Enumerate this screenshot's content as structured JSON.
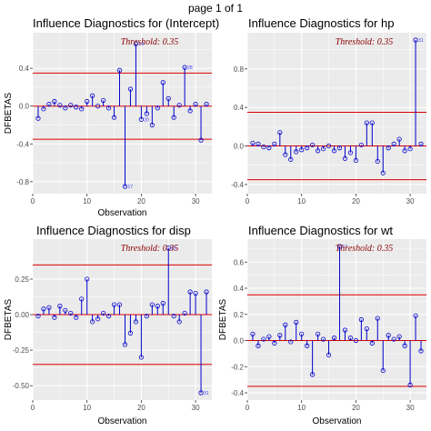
{
  "page_title": "page 1 of 1",
  "chart_data": [
    {
      "type": "lollipop",
      "title": "Influence Diagnostics for (Intercept)",
      "xlabel": "Observation",
      "ylabel": "DFBETAS",
      "threshold_label": "Threshold: 0.35",
      "threshold": 0.35,
      "xlim": [
        0,
        33
      ],
      "ylim": [
        -0.85,
        0.7
      ],
      "xticks": [
        0,
        10,
        20,
        30
      ],
      "xtick_labels": [
        "0",
        "10",
        "20",
        "30"
      ],
      "yticks": [
        -0.8,
        -0.4,
        0.0,
        0.4
      ],
      "ytick_labels": [
        "-0.8",
        "-0.4",
        "0.0",
        "0.4"
      ],
      "x": [
        1,
        2,
        3,
        4,
        5,
        6,
        7,
        8,
        9,
        10,
        11,
        12,
        13,
        14,
        15,
        16,
        17,
        18,
        19,
        20,
        21,
        22,
        23,
        24,
        25,
        26,
        27,
        28,
        29,
        30,
        31,
        32
      ],
      "values": [
        -0.13,
        -0.03,
        0.02,
        0.05,
        0.01,
        -0.02,
        0.01,
        -0.01,
        -0.03,
        0.05,
        0.11,
        0.0,
        0.06,
        -0.02,
        -0.12,
        0.38,
        -0.85,
        0.18,
        0.66,
        -0.14,
        -0.08,
        -0.2,
        -0.02,
        0.25,
        0.08,
        -0.12,
        0.01,
        0.41,
        -0.05,
        0.02,
        -0.36,
        0.02
      ],
      "labeled_points": [
        {
          "x": 17,
          "label": "17"
        },
        {
          "x": 19,
          "label": "19"
        },
        {
          "x": 20,
          "label": "20"
        },
        {
          "x": 28,
          "label": "28"
        }
      ]
    },
    {
      "type": "lollipop",
      "title": "Influence Diagnostics for hp",
      "xlabel": "",
      "ylabel": "",
      "threshold_label": "Threshold: 0.35",
      "threshold": 0.35,
      "xlim": [
        0,
        33
      ],
      "ylim": [
        -0.42,
        1.1
      ],
      "xticks": [
        0,
        10,
        20,
        30
      ],
      "xtick_labels": [
        "0",
        "10",
        "20",
        "30"
      ],
      "yticks": [
        -0.4,
        0.0,
        0.4,
        0.8
      ],
      "ytick_labels": [
        "-0.4",
        "0.0",
        "0.4",
        "0.8"
      ],
      "x": [
        1,
        2,
        3,
        4,
        5,
        6,
        7,
        8,
        9,
        10,
        11,
        12,
        13,
        14,
        15,
        16,
        17,
        18,
        19,
        20,
        21,
        22,
        23,
        24,
        25,
        26,
        27,
        28,
        29,
        30,
        31,
        32
      ],
      "values": [
        0.03,
        0.02,
        -0.01,
        -0.02,
        0.02,
        0.14,
        -0.09,
        -0.14,
        -0.06,
        -0.04,
        -0.02,
        0.01,
        -0.05,
        -0.03,
        0.0,
        -0.05,
        -0.02,
        -0.13,
        -0.07,
        -0.15,
        0.01,
        0.24,
        0.24,
        -0.16,
        -0.28,
        -0.02,
        0.02,
        0.07,
        -0.05,
        -0.03,
        1.1,
        0.02
      ],
      "labeled_points": [
        {
          "x": 31,
          "label": "31"
        }
      ]
    },
    {
      "type": "lollipop",
      "title": "Influence Diagnostics for disp",
      "xlabel": "Observation",
      "ylabel": "DFBETAS",
      "threshold_label": "Threshold: 0.35",
      "threshold": 0.35,
      "xlim": [
        0,
        33
      ],
      "ylim": [
        -0.55,
        0.48
      ],
      "xticks": [
        0,
        10,
        20,
        30
      ],
      "xtick_labels": [
        "0",
        "10",
        "20",
        "30"
      ],
      "yticks": [
        -0.5,
        -0.25,
        0.0,
        0.25
      ],
      "ytick_labels": [
        "-0.50",
        "-0.25",
        "0.00",
        "0.25"
      ],
      "x": [
        1,
        2,
        3,
        4,
        5,
        6,
        7,
        8,
        9,
        10,
        11,
        12,
        13,
        14,
        15,
        16,
        17,
        18,
        19,
        20,
        21,
        22,
        23,
        24,
        25,
        26,
        27,
        28,
        29,
        30,
        31,
        32
      ],
      "values": [
        -0.01,
        0.04,
        0.05,
        -0.02,
        0.06,
        0.03,
        0.01,
        -0.02,
        0.11,
        0.25,
        -0.05,
        -0.03,
        0.01,
        -0.01,
        0.07,
        0.07,
        -0.21,
        -0.13,
        -0.05,
        -0.3,
        -0.01,
        0.07,
        0.06,
        0.08,
        0.47,
        -0.01,
        -0.05,
        0.01,
        0.16,
        0.15,
        -0.55,
        0.16
      ],
      "labeled_points": [
        {
          "x": 25,
          "label": "25"
        },
        {
          "x": 31,
          "label": "31"
        }
      ]
    },
    {
      "type": "lollipop",
      "title": "Influence Diagnostics for wt",
      "xlabel": "Observation",
      "ylabel": "DFBETAS",
      "threshold_label": "Threshold: 0.35",
      "threshold": 0.35,
      "xlim": [
        0,
        33
      ],
      "ylim": [
        -0.4,
        0.72
      ],
      "xticks": [
        0,
        10,
        20,
        30
      ],
      "xtick_labels": [
        "0",
        "10",
        "20",
        "30"
      ],
      "yticks": [
        -0.4,
        -0.2,
        0.0,
        0.2,
        0.4,
        0.6
      ],
      "ytick_labels": [
        "-0.4",
        "-0.2",
        "0.0",
        "0.2",
        "0.4",
        "0.6"
      ],
      "x": [
        1,
        2,
        3,
        4,
        5,
        6,
        7,
        8,
        9,
        10,
        11,
        12,
        13,
        14,
        15,
        16,
        17,
        18,
        19,
        20,
        21,
        22,
        23,
        24,
        25,
        26,
        27,
        28,
        29,
        30,
        31,
        32
      ],
      "values": [
        0.05,
        -0.04,
        0.01,
        0.03,
        -0.02,
        0.04,
        0.12,
        -0.01,
        0.14,
        0.05,
        -0.04,
        -0.26,
        0.05,
        0.01,
        -0.11,
        0.02,
        0.72,
        0.08,
        0.02,
        0.0,
        0.16,
        0.09,
        -0.02,
        0.17,
        -0.23,
        0.04,
        0.01,
        0.03,
        -0.04,
        -0.34,
        0.19,
        -0.08
      ],
      "labeled_points": [
        {
          "x": 17,
          "label": "17"
        }
      ]
    }
  ],
  "colors": {
    "panel_bg": "#ebebeb",
    "grid": "#ffffff",
    "stem": "#0000cc",
    "threshold_line": "#dd0000",
    "zero_line": "#dd0000",
    "threshold_text": "#8b0000"
  }
}
